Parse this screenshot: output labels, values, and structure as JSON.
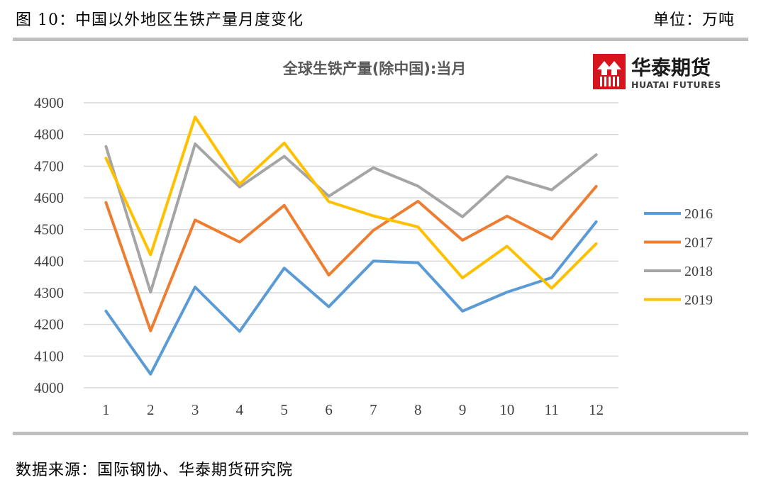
{
  "header": {
    "figure_title": "图 10：中国以外地区生铁产量月度变化",
    "unit_label": "单位：万吨"
  },
  "footer": {
    "source": "数据来源：国际钢协、华泰期货研究院"
  },
  "logo": {
    "name_cn": "华泰期货",
    "name_en": "HUATAI FUTURES",
    "color": "#d7141e"
  },
  "chart_data": {
    "type": "line",
    "title": "全球生铁产量(除中国):当月",
    "categories": [
      "1",
      "2",
      "3",
      "4",
      "5",
      "6",
      "7",
      "8",
      "9",
      "10",
      "11",
      "12"
    ],
    "ylim": [
      4000,
      4900
    ],
    "yticks": [
      "4000",
      "4100",
      "4200",
      "4300",
      "4400",
      "4500",
      "4600",
      "4700",
      "4800",
      "4900"
    ],
    "grid": true,
    "legend_position": "right",
    "series": [
      {
        "name": "2016",
        "color": "#5b9bd5",
        "values": [
          4242,
          4043,
          4318,
          4178,
          4378,
          4256,
          4400,
          4395,
          4242,
          4302,
          4348,
          4524
        ]
      },
      {
        "name": "2017",
        "color": "#ed7d31",
        "values": [
          4585,
          4180,
          4530,
          4460,
          4576,
          4356,
          4497,
          4589,
          4466,
          4542,
          4470,
          4636
        ]
      },
      {
        "name": "2018",
        "color": "#a5a5a5",
        "values": [
          4762,
          4302,
          4770,
          4634,
          4731,
          4605,
          4695,
          4637,
          4540,
          4667,
          4625,
          4736
        ]
      },
      {
        "name": "2019",
        "color": "#ffc000",
        "values": [
          4725,
          4420,
          4855,
          4643,
          4773,
          4588,
          4543,
          4508,
          4347,
          4447,
          4314,
          4455
        ]
      }
    ]
  }
}
